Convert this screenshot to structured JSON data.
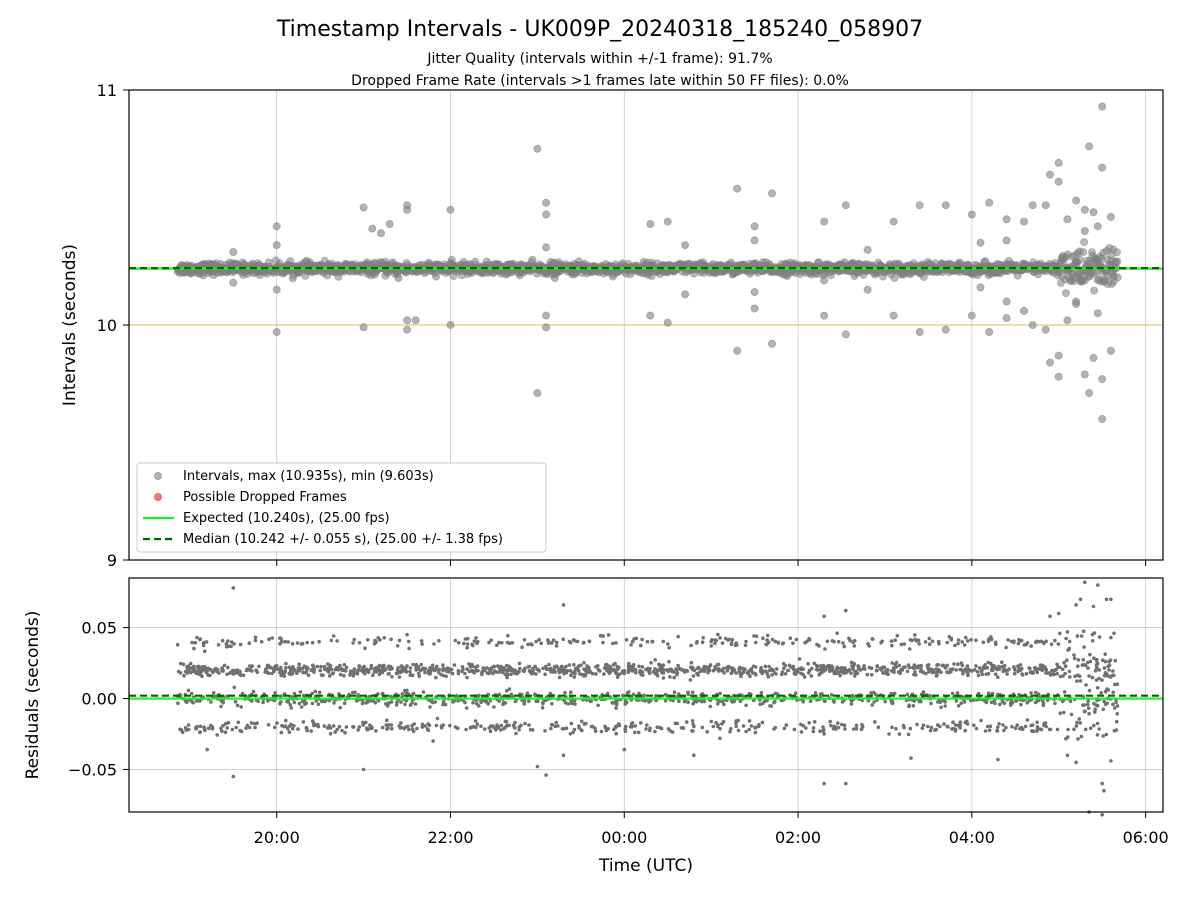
{
  "chart_data": [
    {
      "type": "scatter",
      "title": "Timestamp Intervals - UK009P_20240318_185240_058907",
      "subtitle_lines": [
        "Jitter Quality (intervals within +/-1 frame): 91.7%",
        "Dropped Frame Rate (intervals >1 frames late within 50 FF files): 0.0%"
      ],
      "xlabel": "Time (UTC)",
      "ylabel": "Intervals (seconds)",
      "x_unit": "hours since 00:00 UTC",
      "xlim": [
        -5.7,
        6.2
      ],
      "ylim": [
        9,
        11
      ],
      "x_ticks": [
        -4,
        -2,
        0,
        2,
        4,
        6
      ],
      "x_tick_labels": [
        "20:00",
        "22:00",
        "00:00",
        "02:00",
        "04:00",
        "06:00"
      ],
      "y_ticks": [
        9,
        10,
        11
      ],
      "y_tick_labels": [
        "9",
        "10",
        "11"
      ],
      "grid": true,
      "reference_line": 10.0,
      "reference_line_color": "#e6c76f",
      "data_x_range": [
        -5.14,
        5.68
      ],
      "data_center": 10.24,
      "legend_position": "lower-left",
      "series": [
        {
          "name": "Intervals, max (10.935s), min (9.603s)",
          "color": "#808080",
          "marker": "circle",
          "max": 10.935,
          "min": 9.603,
          "outliers": [
            [
              -4.0,
              10.42
            ],
            [
              -4.0,
              10.34
            ],
            [
              -4.0,
              10.15
            ],
            [
              -4.0,
              9.97
            ],
            [
              -4.5,
              10.31
            ],
            [
              -4.5,
              10.18
            ],
            [
              -3.0,
              10.5
            ],
            [
              -3.0,
              9.99
            ],
            [
              -2.8,
              10.39
            ],
            [
              -2.7,
              10.43
            ],
            [
              -2.6,
              10.2
            ],
            [
              -2.4,
              10.02
            ],
            [
              -2.9,
              10.41
            ],
            [
              -2.5,
              10.51
            ],
            [
              -2.5,
              10.49
            ],
            [
              -2.5,
              10.02
            ],
            [
              -2.5,
              9.98
            ],
            [
              -2.0,
              10.49
            ],
            [
              -2.0,
              10.0
            ],
            [
              -1.0,
              10.75
            ],
            [
              -1.0,
              9.71
            ],
            [
              -0.9,
              10.52
            ],
            [
              -0.9,
              10.47
            ],
            [
              -0.9,
              10.33
            ],
            [
              -0.9,
              10.04
            ],
            [
              -0.9,
              9.99
            ],
            [
              -0.8,
              10.2
            ],
            [
              0.3,
              10.43
            ],
            [
              0.3,
              10.04
            ],
            [
              0.5,
              10.44
            ],
            [
              0.5,
              10.01
            ],
            [
              0.7,
              10.34
            ],
            [
              0.7,
              10.13
            ],
            [
              1.3,
              10.58
            ],
            [
              1.3,
              9.89
            ],
            [
              1.5,
              10.42
            ],
            [
              1.5,
              10.36
            ],
            [
              1.5,
              10.14
            ],
            [
              1.5,
              10.07
            ],
            [
              1.7,
              10.56
            ],
            [
              1.7,
              9.92
            ],
            [
              2.3,
              10.44
            ],
            [
              2.3,
              10.19
            ],
            [
              2.3,
              10.04
            ],
            [
              2.55,
              10.51
            ],
            [
              2.55,
              9.96
            ],
            [
              2.8,
              10.32
            ],
            [
              2.8,
              10.15
            ],
            [
              3.1,
              10.44
            ],
            [
              3.1,
              10.04
            ],
            [
              3.4,
              10.51
            ],
            [
              3.4,
              9.97
            ],
            [
              3.7,
              10.51
            ],
            [
              3.7,
              9.98
            ],
            [
              4.0,
              10.47
            ],
            [
              4.0,
              10.04
            ],
            [
              4.2,
              10.52
            ],
            [
              4.2,
              9.97
            ],
            [
              4.1,
              10.35
            ],
            [
              4.1,
              10.16
            ],
            [
              4.4,
              10.45
            ],
            [
              4.4,
              10.36
            ],
            [
              4.4,
              10.1
            ],
            [
              4.4,
              10.03
            ],
            [
              4.6,
              10.44
            ],
            [
              4.6,
              10.06
            ],
            [
              4.7,
              10.51
            ],
            [
              4.7,
              10.0
            ],
            [
              4.85,
              10.51
            ],
            [
              4.85,
              9.98
            ],
            [
              4.9,
              10.64
            ],
            [
              4.9,
              9.84
            ],
            [
              5.0,
              10.69
            ],
            [
              5.0,
              9.78
            ],
            [
              5.0,
              10.61
            ],
            [
              5.0,
              9.87
            ],
            [
              5.1,
              10.45
            ],
            [
              5.1,
              10.02
            ],
            [
              5.2,
              10.53
            ],
            [
              5.2,
              10.09
            ],
            [
              5.3,
              10.49
            ],
            [
              5.3,
              9.79
            ],
            [
              5.35,
              10.76
            ],
            [
              5.35,
              9.71
            ],
            [
              5.4,
              10.48
            ],
            [
              5.4,
              9.86
            ],
            [
              5.5,
              10.93
            ],
            [
              5.5,
              9.6
            ],
            [
              5.5,
              10.67
            ],
            [
              5.5,
              9.77
            ],
            [
              5.6,
              10.46
            ],
            [
              5.6,
              9.89
            ],
            [
              5.3,
              10.4
            ],
            [
              5.2,
              10.1
            ],
            [
              5.45,
              10.42
            ],
            [
              5.45,
              10.05
            ]
          ]
        },
        {
          "name": "Possible Dropped Frames",
          "color": "#ff4d4d",
          "marker": "circle",
          "points": []
        },
        {
          "name": "Expected (10.240s), (25.00 fps)",
          "type": "hline",
          "y": 10.24,
          "color": "#22ee22",
          "style": "solid"
        },
        {
          "name": "Median (10.242 +/- 0.055 s), (25.00 +/- 1.38 fps)",
          "type": "hline",
          "y": 10.242,
          "color": "#006400",
          "style": "dashed"
        }
      ]
    },
    {
      "type": "scatter",
      "title": "",
      "xlabel": "Time (UTC)",
      "ylabel": "Residuals (seconds)",
      "x_unit": "hours since 00:00 UTC",
      "xlim": [
        -5.7,
        6.2
      ],
      "ylim": [
        -0.08,
        0.085
      ],
      "x_ticks": [
        -4,
        -2,
        0,
        2,
        4,
        6
      ],
      "y_ticks": [
        -0.05,
        0.0,
        0.05
      ],
      "y_tick_labels": [
        "−0.05",
        "0.00",
        "0.05"
      ],
      "grid": true,
      "bands": [
        0.04,
        0.02,
        0.0,
        -0.02
      ],
      "band_weights": [
        0.1,
        0.42,
        0.33,
        0.15
      ],
      "series": [
        {
          "name": "Residuals",
          "color": "#707070",
          "marker": "circle",
          "outliers": [
            [
              -4.8,
              -0.036
            ],
            [
              -4.5,
              0.078
            ],
            [
              -4.5,
              -0.055
            ],
            [
              -3.0,
              -0.05
            ],
            [
              -2.5,
              0.045
            ],
            [
              -2.2,
              -0.03
            ],
            [
              -1.0,
              -0.048
            ],
            [
              -0.9,
              -0.054
            ],
            [
              -0.7,
              0.066
            ],
            [
              -0.7,
              -0.04
            ],
            [
              0.0,
              -0.036
            ],
            [
              0.8,
              -0.04
            ],
            [
              1.1,
              -0.028
            ],
            [
              2.3,
              0.058
            ],
            [
              2.3,
              -0.06
            ],
            [
              2.55,
              0.062
            ],
            [
              2.55,
              -0.06
            ],
            [
              3.3,
              -0.042
            ],
            [
              4.3,
              -0.043
            ],
            [
              4.9,
              0.058
            ],
            [
              5.0,
              0.06
            ],
            [
              5.1,
              -0.04
            ],
            [
              5.2,
              0.066
            ],
            [
              5.25,
              0.07
            ],
            [
              5.3,
              0.082
            ],
            [
              5.35,
              -0.08
            ],
            [
              5.4,
              0.065
            ],
            [
              5.45,
              0.08
            ],
            [
              5.5,
              -0.06
            ],
            [
              5.52,
              -0.065
            ],
            [
              5.55,
              0.07
            ],
            [
              5.6,
              0.07
            ],
            [
              5.6,
              -0.044
            ],
            [
              5.5,
              -0.082
            ],
            [
              5.2,
              -0.045
            ],
            [
              5.1,
              0.047
            ]
          ]
        },
        {
          "name": "Expected",
          "type": "hline",
          "y": 0.0,
          "color": "#22ee22",
          "style": "solid"
        },
        {
          "name": "Median",
          "type": "hline",
          "y": 0.002,
          "color": "#006400",
          "style": "dashed"
        }
      ]
    }
  ]
}
